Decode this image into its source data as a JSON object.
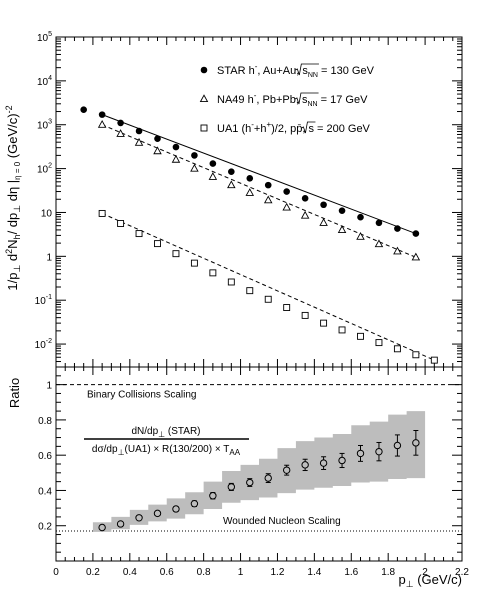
{
  "chart_data": [
    {
      "type": "scatter",
      "panel": "top",
      "y_scale": "log",
      "xlim": [
        0,
        2.2
      ],
      "ylim": [
        0.003,
        100000
      ],
      "ylabel_parts": {
        "a": "1/p",
        "a_sub": "⊥",
        "b": " d",
        "b_sup": "2",
        "c": "N",
        "c_sub": "h",
        "d": "/ dp",
        "d_sub": "⊥",
        "e": "  dη |",
        "e_sub": "η = 0",
        "f": "  (GeV/c)",
        "f_sup": "-2"
      },
      "y_ticks": [
        {
          "v": 0.01,
          "b": "10",
          "e": "-2"
        },
        {
          "v": 0.1,
          "b": "10",
          "e": "-1"
        },
        {
          "v": 1,
          "b": "1",
          "e": ""
        },
        {
          "v": 10,
          "b": "10",
          "e": ""
        },
        {
          "v": 100,
          "b": "10",
          "e": "2"
        },
        {
          "v": 1000,
          "b": "10",
          "e": "3"
        },
        {
          "v": 10000,
          "b": "10",
          "e": "4"
        },
        {
          "v": 100000,
          "b": "10",
          "e": "5"
        }
      ],
      "legend_position": "top-right",
      "series": [
        {
          "key": "star",
          "marker": "filled-circle",
          "fit": "solid",
          "legend": {
            "main": "STAR h",
            "sup1": "-",
            "mid": ", Au+Au,  ",
            "root": "s",
            "root_sub": "NN",
            "tail": " = 130 GeV"
          },
          "x": [
            0.15,
            0.25,
            0.35,
            0.45,
            0.55,
            0.65,
            0.75,
            0.85,
            0.95,
            1.05,
            1.15,
            1.25,
            1.35,
            1.45,
            1.55,
            1.65,
            1.75,
            1.85,
            1.95
          ],
          "y": [
            2200,
            1700,
            1100,
            720,
            480,
            310,
            200,
            130,
            85,
            60,
            42,
            30,
            21,
            15,
            11,
            7.8,
            5.8,
            4.3,
            3.3
          ],
          "fit_x": [
            0.25,
            1.95
          ],
          "fit_y": [
            1700,
            3.3
          ]
        },
        {
          "key": "na49",
          "marker": "open-triangle",
          "fit": "dashed",
          "legend": {
            "main": "NA49 h",
            "sup1": "-",
            "mid": ", Pb+Pb,  ",
            "root": "s",
            "root_sub": "NN",
            "tail": " = 17 GeV"
          },
          "x": [
            0.25,
            0.35,
            0.45,
            0.55,
            0.65,
            0.75,
            0.85,
            0.95,
            1.05,
            1.15,
            1.25,
            1.35,
            1.45,
            1.55,
            1.65,
            1.75,
            1.85,
            1.95
          ],
          "y": [
            1000,
            620,
            390,
            250,
            160,
            100,
            65,
            42,
            28,
            19,
            13,
            8.5,
            5.8,
            4.0,
            2.8,
            1.9,
            1.3,
            0.95
          ],
          "fit_x": [
            0.25,
            1.95
          ],
          "fit_y": [
            1000,
            0.95
          ]
        },
        {
          "key": "ua1",
          "marker": "open-square",
          "fit": "dashed",
          "legend": {
            "main": "UA1 (h",
            "sup1": "-",
            "mid": "+h",
            "sup2": "+",
            "mid2": ")/2, pp̄,  ",
            "root": "s",
            "root_sub": "",
            "tail": " = 200 GeV"
          },
          "x": [
            0.25,
            0.35,
            0.45,
            0.55,
            0.65,
            0.75,
            0.85,
            0.95,
            1.05,
            1.15,
            1.25,
            1.35,
            1.45,
            1.55,
            1.65,
            1.75,
            1.85,
            1.95,
            2.05
          ],
          "y": [
            9.5,
            5.6,
            3.3,
            1.95,
            1.15,
            0.7,
            0.42,
            0.26,
            0.165,
            0.105,
            0.068,
            0.045,
            0.03,
            0.021,
            0.015,
            0.0108,
            0.0078,
            0.0057,
            0.0043
          ],
          "fit_x": [
            0.25,
            2.05
          ],
          "fit_y": [
            9.5,
            0.0043
          ]
        }
      ]
    },
    {
      "type": "scatter",
      "panel": "bottom",
      "xlim": [
        0,
        2.2
      ],
      "ylim": [
        0,
        1.1
      ],
      "ylabel": "Ratio",
      "xlabel": "p",
      "xlabel_sub": "⊥",
      "xlabel_tail": " (GeV/c)",
      "x_ticks": [
        "0",
        "0.2",
        "0.4",
        "0.6",
        "0.8",
        "1",
        "1.2",
        "1.4",
        "1.6",
        "1.8",
        "2",
        "2.2"
      ],
      "y_ticks": [
        "0.2",
        "0.4",
        "0.6",
        "0.8",
        "1"
      ],
      "fraction": {
        "num_a": "dN/dp",
        "num_sub": "⊥",
        "num_b": " (STAR)",
        "den_a": "dσ/dp",
        "den_sub": "⊥",
        "den_b": "(UA1) × R(130/200) × T",
        "den_sub2": "AA"
      },
      "reference_lines": [
        {
          "y": 1.0,
          "label": "Binary Collisions Scaling",
          "style": "dashed"
        },
        {
          "y": 0.17,
          "label": "Wounded Nucleon Scaling",
          "style": "dotted"
        }
      ],
      "x": [
        0.25,
        0.35,
        0.45,
        0.55,
        0.65,
        0.75,
        0.85,
        0.95,
        1.05,
        1.15,
        1.25,
        1.35,
        1.45,
        1.55,
        1.65,
        1.75,
        1.85,
        1.95
      ],
      "y": [
        0.19,
        0.21,
        0.245,
        0.27,
        0.295,
        0.325,
        0.37,
        0.42,
        0.445,
        0.47,
        0.515,
        0.545,
        0.555,
        0.57,
        0.61,
        0.62,
        0.655,
        0.67
      ],
      "stat_err": [
        0.01,
        0.01,
        0.012,
        0.012,
        0.014,
        0.016,
        0.018,
        0.02,
        0.022,
        0.025,
        0.028,
        0.032,
        0.036,
        0.04,
        0.045,
        0.052,
        0.06,
        0.07
      ],
      "syst_lo": [
        0.165,
        0.18,
        0.205,
        0.225,
        0.24,
        0.265,
        0.295,
        0.33,
        0.345,
        0.36,
        0.385,
        0.405,
        0.415,
        0.425,
        0.445,
        0.45,
        0.465,
        0.47
      ],
      "syst_hi": [
        0.22,
        0.25,
        0.29,
        0.32,
        0.355,
        0.39,
        0.45,
        0.51,
        0.545,
        0.58,
        0.64,
        0.68,
        0.7,
        0.72,
        0.77,
        0.79,
        0.83,
        0.85
      ]
    }
  ]
}
